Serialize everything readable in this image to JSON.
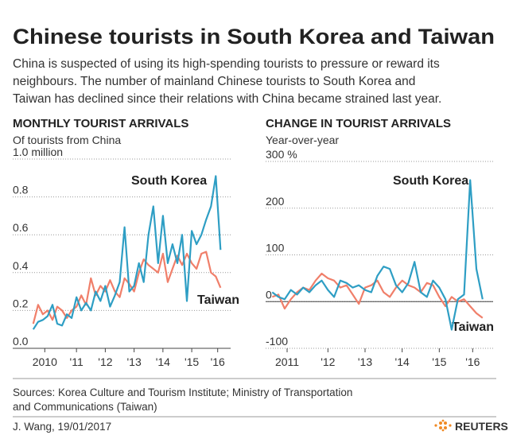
{
  "title": "Chinese tourists in South Korea and Taiwan",
  "description": [
    "China is suspected of using its high-spending tourists to pressure or reward its",
    "neighbours. The number of mainland Chinese tourists to South Korea and",
    "Taiwan has declined since their relations with China became strained last year."
  ],
  "sources": [
    "Sources: Korea Culture and Tourism Institute; Ministry of Transportation",
    "and Communications (Taiwan)"
  ],
  "byline": "J. Wang, 19/01/2017",
  "brand": "REUTERS",
  "chart_data": [
    {
      "type": "line",
      "title": "MONTHLY TOURIST ARRIVALS",
      "subtitle": "Of tourists from China",
      "x": [
        2010.0,
        2010.167,
        2010.333,
        2010.5,
        2010.667,
        2010.833,
        2011.0,
        2011.167,
        2011.333,
        2011.5,
        2011.667,
        2011.833,
        2012.0,
        2012.167,
        2012.333,
        2012.5,
        2012.667,
        2012.833,
        2013.0,
        2013.167,
        2013.333,
        2013.5,
        2013.667,
        2013.833,
        2014.0,
        2014.167,
        2014.333,
        2014.5,
        2014.667,
        2014.833,
        2015.0,
        2015.167,
        2015.333,
        2015.5,
        2015.667,
        2015.833,
        2016.0,
        2016.167,
        2016.333,
        2016.5
      ],
      "xlim": [
        2009.95,
        2016.85
      ],
      "xticks": [
        {
          "value": 2010.4,
          "label": "2010"
        },
        {
          "value": 2011.5,
          "label": "'11"
        },
        {
          "value": 2012.5,
          "label": "'12"
        },
        {
          "value": 2013.5,
          "label": "'13"
        },
        {
          "value": 2014.5,
          "label": "'14"
        },
        {
          "value": 2015.5,
          "label": "'15"
        },
        {
          "value": 2016.4,
          "label": "'16"
        }
      ],
      "ylim": [
        0,
        1.0
      ],
      "yticks": [
        {
          "value": 0,
          "label": "0.0"
        },
        0.2,
        0.4,
        0.6,
        0.8,
        {
          "value": 1.0,
          "label": "1.0 million"
        }
      ],
      "grid": true,
      "series": [
        {
          "name": "South Korea",
          "color": "#2e9ec4",
          "values": [
            0.1,
            0.14,
            0.15,
            0.17,
            0.23,
            0.13,
            0.12,
            0.18,
            0.16,
            0.27,
            0.2,
            0.24,
            0.2,
            0.3,
            0.25,
            0.33,
            0.22,
            0.28,
            0.35,
            0.64,
            0.3,
            0.33,
            0.45,
            0.35,
            0.6,
            0.75,
            0.45,
            0.7,
            0.45,
            0.55,
            0.45,
            0.6,
            0.25,
            0.62,
            0.55,
            0.6,
            0.68,
            0.75,
            0.91,
            0.52
          ]
        },
        {
          "name": "Taiwan",
          "color": "#f07f6a",
          "values": [
            0.13,
            0.23,
            0.18,
            0.2,
            0.15,
            0.22,
            0.2,
            0.16,
            0.2,
            0.22,
            0.28,
            0.23,
            0.37,
            0.28,
            0.33,
            0.3,
            0.36,
            0.3,
            0.27,
            0.37,
            0.34,
            0.3,
            0.4,
            0.47,
            0.44,
            0.42,
            0.4,
            0.5,
            0.35,
            0.42,
            0.49,
            0.44,
            0.5,
            0.45,
            0.42,
            0.5,
            0.51,
            0.4,
            0.38,
            0.32
          ]
        }
      ]
    },
    {
      "type": "line",
      "title": "CHANGE IN TOURIST ARRIVALS",
      "subtitle": "Year-over-year",
      "x": [
        2011.0,
        2011.167,
        2011.333,
        2011.5,
        2011.667,
        2011.833,
        2012.0,
        2012.167,
        2012.333,
        2012.5,
        2012.667,
        2012.833,
        2013.0,
        2013.167,
        2013.333,
        2013.5,
        2013.667,
        2013.833,
        2014.0,
        2014.167,
        2014.333,
        2014.5,
        2014.667,
        2014.833,
        2015.0,
        2015.167,
        2015.333,
        2015.5,
        2015.667,
        2015.833,
        2016.0,
        2016.167,
        2016.333,
        2016.5,
        2016.667
      ],
      "xlim": [
        2010.95,
        2016.95
      ],
      "xticks": [
        {
          "value": 2011.4,
          "label": "2011"
        },
        {
          "value": 2012.5,
          "label": "'12"
        },
        {
          "value": 2013.5,
          "label": "'13"
        },
        {
          "value": 2014.5,
          "label": "'14"
        },
        {
          "value": 2015.5,
          "label": "'15"
        },
        {
          "value": 2016.4,
          "label": "'16"
        }
      ],
      "ylim": [
        -100,
        300
      ],
      "yticks": [
        -100,
        0,
        100,
        200,
        {
          "value": 300,
          "label": "300 %"
        }
      ],
      "grid": true,
      "series": [
        {
          "name": "South Korea",
          "color": "#2e9ec4",
          "values": [
            20,
            10,
            5,
            25,
            15,
            30,
            20,
            35,
            45,
            25,
            10,
            45,
            40,
            30,
            35,
            25,
            20,
            55,
            75,
            70,
            35,
            20,
            40,
            85,
            20,
            10,
            45,
            30,
            5,
            -60,
            5,
            15,
            260,
            70,
            5
          ]
        },
        {
          "name": "Taiwan",
          "color": "#f07f6a",
          "values": [
            10,
            15,
            -15,
            5,
            20,
            30,
            25,
            45,
            60,
            50,
            45,
            30,
            35,
            15,
            -5,
            30,
            35,
            45,
            20,
            10,
            30,
            45,
            35,
            30,
            20,
            40,
            35,
            10,
            -10,
            10,
            0,
            5,
            -10,
            -25,
            -35
          ]
        }
      ]
    }
  ]
}
